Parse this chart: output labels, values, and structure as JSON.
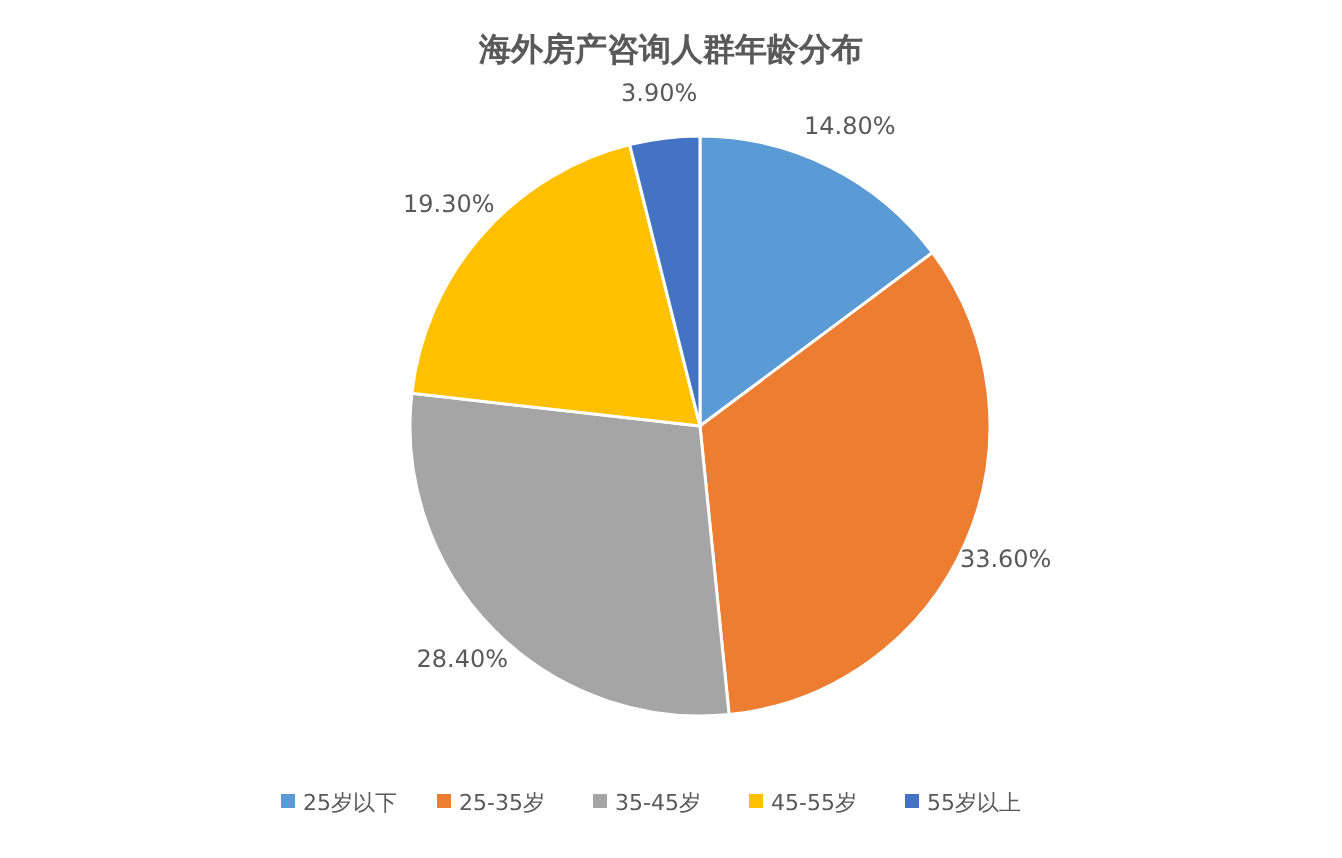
{
  "chart_data": {
    "type": "pie",
    "title": "海外房产咨询人群年龄分布",
    "categories": [
      "25岁以下",
      "25-35岁",
      "35-45岁",
      "45-55岁",
      "55岁以上"
    ],
    "values": [
      14.8,
      33.6,
      28.4,
      19.3,
      3.9
    ],
    "value_labels": [
      "14.80%",
      "33.60%",
      "28.40%",
      "19.30%",
      "3.90%"
    ],
    "colors": [
      "#5b9bd5",
      "#ed7d31",
      "#a5a5a5",
      "#ffc000",
      "#4472c4"
    ],
    "legend": "bottom"
  }
}
